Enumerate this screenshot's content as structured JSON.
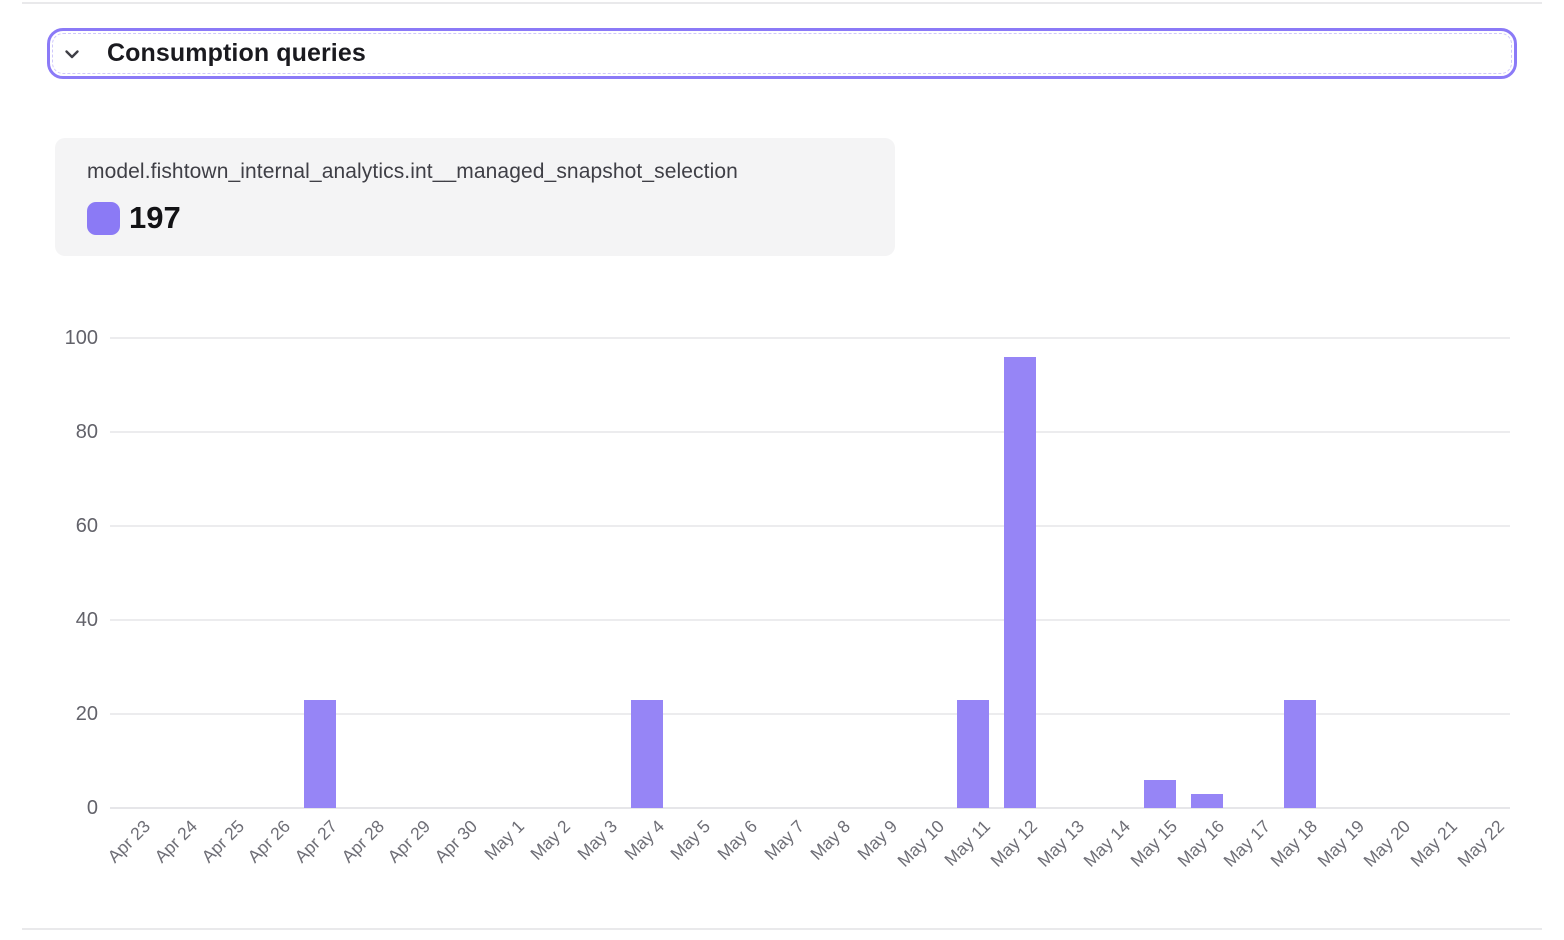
{
  "header": {
    "title": "Consumption queries",
    "collapse_icon": "chevron-down",
    "border_color": "#8b7af7"
  },
  "tooltip": {
    "series_name": "model.fishtown_internal_analytics.int__managed_snapshot_selection",
    "value": "197",
    "swatch_color": "#8b7af5"
  },
  "chart_data": {
    "type": "bar",
    "title": "",
    "xlabel": "",
    "ylabel": "",
    "series_name": "model.fishtown_internal_analytics.int__managed_snapshot_selection",
    "categories": [
      "Apr 23",
      "Apr 24",
      "Apr 25",
      "Apr 26",
      "Apr 27",
      "Apr 28",
      "Apr 29",
      "Apr 30",
      "May 1",
      "May 2",
      "May 3",
      "May 4",
      "May 5",
      "May 6",
      "May 7",
      "May 8",
      "May 9",
      "May 10",
      "May 11",
      "May 12",
      "May 13",
      "May 14",
      "May 15",
      "May 16",
      "May 17",
      "May 18",
      "May 19",
      "May 20",
      "May 21",
      "May 22"
    ],
    "values": [
      0,
      0,
      0,
      0,
      23,
      0,
      0,
      0,
      0,
      0,
      0,
      23,
      0,
      0,
      0,
      0,
      0,
      0,
      23,
      96,
      0,
      0,
      6,
      3,
      0,
      23,
      0,
      0,
      0,
      0
    ],
    "total": 197,
    "ylim": [
      0,
      100
    ],
    "yticks": [
      0,
      20,
      40,
      60,
      80,
      100
    ],
    "grid": true,
    "legend_position": "top-left",
    "bar_color": "#9685f6",
    "x_tick_rotation": -45
  },
  "colors": {
    "accent": "#8b7af7",
    "grid": "#ececee",
    "axis_text": "#6e6e76",
    "card_bg": "#f4f4f5",
    "divider": "#e9e9eb"
  }
}
